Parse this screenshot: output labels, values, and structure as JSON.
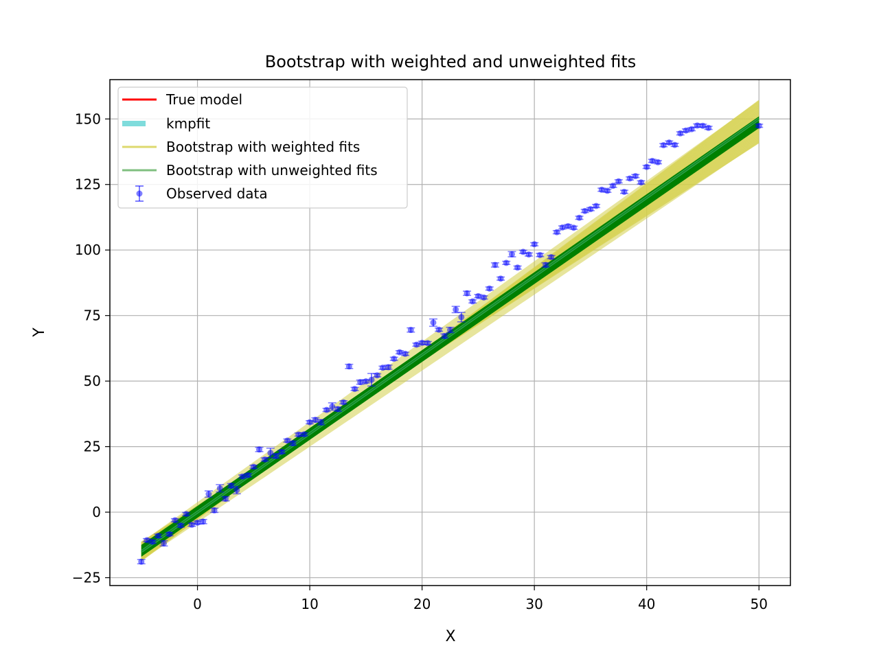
{
  "chart_data": {
    "type": "scatter",
    "title": "Bootstrap with weighted and unweighted fits",
    "xlabel": "X",
    "ylabel": "Y",
    "xlim": [
      -7.8,
      52.8
    ],
    "ylim": [
      -28,
      165
    ],
    "xticks": [
      0,
      10,
      20,
      30,
      40,
      50
    ],
    "yticks": [
      -25,
      0,
      25,
      50,
      75,
      100,
      125,
      150
    ],
    "grid": true,
    "legend_position": "top-left",
    "colors": {
      "true_model": "#ff0000",
      "kmpfit": "#7fdcdc",
      "weighted": "#d4d04a",
      "unweighted": "#008000",
      "observed": "#0000ff",
      "grid": "#b0b0b0"
    },
    "series": [
      {
        "name": "True model",
        "kind": "line",
        "x": [
          -5,
          50
        ],
        "y": [
          -15,
          150
        ]
      },
      {
        "name": "kmpfit",
        "kind": "line",
        "x": [
          -5,
          50
        ],
        "y": [
          -15,
          150
        ]
      },
      {
        "name": "Bootstrap with weighted fits",
        "kind": "band",
        "x": [
          -5,
          50
        ],
        "y_lower": [
          -18.5,
          141
        ],
        "y_upper": [
          -11.5,
          157
        ]
      },
      {
        "name": "Bootstrap with unweighted fits",
        "kind": "band",
        "x": [
          -5,
          50
        ],
        "y_lower": [
          -17,
          146.5
        ],
        "y_upper": [
          -12.5,
          151
        ]
      },
      {
        "name": "Observed data",
        "kind": "errorbar",
        "points": [
          [
            -5.0,
            -18.9,
            0.8
          ],
          [
            -4.5,
            -10.7,
            0.6
          ],
          [
            -4.0,
            -11.3,
            0.6
          ],
          [
            -3.5,
            -9.0,
            0.6
          ],
          [
            -3.0,
            -11.9,
            1.0
          ],
          [
            -2.5,
            -8.4,
            0.6
          ],
          [
            -2.0,
            -3.1,
            0.6
          ],
          [
            -1.5,
            -5.1,
            0.6
          ],
          [
            -1.0,
            -0.7,
            0.6
          ],
          [
            -0.5,
            -4.8,
            0.6
          ],
          [
            0.0,
            -4.0,
            0.6
          ],
          [
            0.5,
            -3.6,
            0.8
          ],
          [
            1.0,
            6.9,
            1.2
          ],
          [
            1.5,
            0.7,
            0.8
          ],
          [
            2.0,
            9.1,
            1.4
          ],
          [
            2.5,
            5.1,
            0.8
          ],
          [
            3.0,
            10.1,
            0.8
          ],
          [
            3.5,
            8.4,
            1.4
          ],
          [
            4.0,
            13.6,
            0.6
          ],
          [
            4.5,
            14.1,
            0.6
          ],
          [
            5.0,
            17.3,
            0.6
          ],
          [
            5.5,
            23.9,
            0.8
          ],
          [
            6.0,
            20.1,
            0.6
          ],
          [
            6.5,
            22.6,
            1.8
          ],
          [
            7.0,
            21.4,
            0.8
          ],
          [
            7.5,
            23.0,
            0.6
          ],
          [
            8.0,
            27.3,
            0.6
          ],
          [
            8.5,
            26.3,
            0.8
          ],
          [
            9.0,
            29.6,
            0.6
          ],
          [
            9.5,
            29.7,
            0.6
          ],
          [
            10.0,
            34.3,
            0.6
          ],
          [
            10.5,
            35.2,
            0.8
          ],
          [
            11.0,
            34.3,
            1.0
          ],
          [
            11.5,
            39.0,
            0.6
          ],
          [
            12.0,
            40.3,
            1.4
          ],
          [
            12.5,
            39.3,
            0.8
          ],
          [
            13.0,
            41.9,
            0.6
          ],
          [
            13.5,
            55.6,
            0.8
          ],
          [
            14.0,
            47.0,
            0.6
          ],
          [
            14.5,
            49.6,
            0.8
          ],
          [
            15.0,
            49.9,
            0.6
          ],
          [
            15.5,
            50.5,
            2.4
          ],
          [
            16.0,
            52.2,
            0.6
          ],
          [
            16.5,
            55.1,
            0.6
          ],
          [
            17.0,
            55.3,
            0.8
          ],
          [
            17.5,
            58.5,
            0.6
          ],
          [
            18.0,
            61.0,
            0.6
          ],
          [
            18.5,
            60.4,
            0.6
          ],
          [
            19.0,
            69.5,
            0.8
          ],
          [
            19.5,
            63.9,
            0.6
          ],
          [
            20.0,
            64.6,
            0.6
          ],
          [
            20.5,
            64.5,
            0.6
          ],
          [
            21.0,
            72.3,
            1.4
          ],
          [
            21.5,
            69.6,
            0.6
          ],
          [
            22.0,
            67.2,
            0.8
          ],
          [
            22.5,
            69.5,
            1.0
          ],
          [
            23.0,
            77.3,
            1.2
          ],
          [
            23.5,
            74.4,
            1.8
          ],
          [
            24.0,
            83.5,
            0.8
          ],
          [
            24.5,
            80.4,
            0.6
          ],
          [
            25.0,
            82.4,
            0.6
          ],
          [
            25.5,
            81.9,
            0.6
          ],
          [
            26.0,
            85.3,
            0.6
          ],
          [
            26.5,
            94.3,
            0.8
          ],
          [
            27.0,
            89.1,
            0.6
          ],
          [
            27.5,
            95.1,
            0.6
          ],
          [
            28.0,
            98.4,
            1.0
          ],
          [
            28.5,
            93.3,
            0.6
          ],
          [
            29.0,
            99.3,
            0.6
          ],
          [
            29.5,
            98.3,
            0.6
          ],
          [
            30.0,
            102.2,
            0.6
          ],
          [
            30.5,
            98.1,
            0.6
          ],
          [
            31.0,
            94.3,
            0.8
          ],
          [
            31.5,
            97.3,
            0.6
          ],
          [
            32.0,
            106.8,
            0.6
          ],
          [
            32.5,
            108.6,
            0.6
          ],
          [
            33.0,
            109.1,
            0.6
          ],
          [
            33.5,
            108.5,
            0.6
          ],
          [
            34.0,
            112.3,
            0.6
          ],
          [
            34.5,
            114.9,
            0.6
          ],
          [
            35.0,
            115.6,
            0.6
          ],
          [
            35.5,
            116.8,
            0.6
          ],
          [
            36.0,
            123.0,
            0.6
          ],
          [
            36.5,
            122.6,
            0.6
          ],
          [
            37.0,
            124.5,
            0.6
          ],
          [
            37.5,
            126.2,
            0.6
          ],
          [
            38.0,
            122.2,
            0.6
          ],
          [
            38.5,
            127.3,
            0.6
          ],
          [
            39.0,
            128.2,
            0.6
          ],
          [
            39.5,
            125.8,
            0.6
          ],
          [
            40.0,
            131.7,
            0.6
          ],
          [
            40.5,
            134.0,
            0.6
          ],
          [
            41.0,
            133.5,
            0.6
          ],
          [
            41.5,
            140.0,
            0.6
          ],
          [
            42.0,
            141.0,
            0.6
          ],
          [
            42.5,
            140.1,
            0.6
          ],
          [
            43.0,
            144.5,
            0.6
          ],
          [
            43.5,
            145.6,
            0.6
          ],
          [
            44.0,
            146.1,
            0.6
          ],
          [
            44.5,
            147.5,
            0.6
          ],
          [
            45.0,
            147.4,
            0.6
          ],
          [
            45.5,
            146.6,
            0.6
          ],
          [
            50.0,
            147.4,
            0.6
          ]
        ]
      }
    ]
  }
}
